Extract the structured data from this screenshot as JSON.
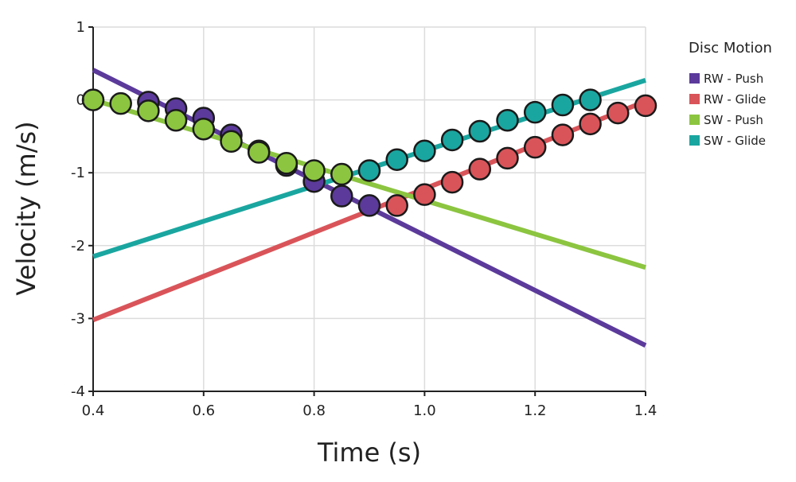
{
  "chart_data": {
    "type": "scatter",
    "xlabel": "Time (s)",
    "ylabel": "Velocity (m/s)",
    "xlim": [
      0.4,
      1.4
    ],
    "ylim": [
      -4,
      1
    ],
    "xticks": [
      0.4,
      0.6,
      0.8,
      1.0,
      1.2,
      1.4
    ],
    "xtick_labels": [
      "0.4",
      "0.6",
      "0.8",
      "1.0",
      "1.2",
      "1.4"
    ],
    "yticks": [
      -4,
      -3,
      -2,
      -1,
      0,
      1
    ],
    "ytick_labels": [
      "-4",
      "-3",
      "-2",
      "-1",
      "0",
      "1"
    ],
    "grid": true,
    "legend": {
      "title": "Disc Motion",
      "placement": "right"
    },
    "series": [
      {
        "name": "RW - Push",
        "color": "#5b3a9b",
        "fit_line": {
          "x": [
            0.4,
            1.4
          ],
          "y": [
            0.41,
            -3.37
          ]
        },
        "points": {
          "x": [
            0.5,
            0.55,
            0.6,
            0.65,
            0.7,
            0.75,
            0.8,
            0.85,
            0.9
          ],
          "y": [
            -0.03,
            -0.12,
            -0.25,
            -0.48,
            -0.7,
            -0.9,
            -1.12,
            -1.32,
            -1.45
          ]
        }
      },
      {
        "name": "RW - Glide",
        "color": "#d95459",
        "fit_line": {
          "x": [
            0.4,
            1.4
          ],
          "y": [
            -3.02,
            -0.02
          ]
        },
        "points": {
          "x": [
            0.95,
            1.0,
            1.05,
            1.1,
            1.15,
            1.2,
            1.25,
            1.3,
            1.35,
            1.4
          ],
          "y": [
            -1.45,
            -1.3,
            -1.13,
            -0.95,
            -0.8,
            -0.65,
            -0.48,
            -0.33,
            -0.18,
            -0.08
          ]
        }
      },
      {
        "name": "SW - Push",
        "color": "#8cc540",
        "fit_line": {
          "x": [
            0.4,
            1.4
          ],
          "y": [
            0.0,
            -2.3
          ]
        },
        "points": {
          "x": [
            0.4,
            0.45,
            0.5,
            0.55,
            0.6,
            0.65,
            0.7,
            0.75,
            0.8,
            0.85
          ],
          "y": [
            0.0,
            -0.05,
            -0.15,
            -0.28,
            -0.4,
            -0.57,
            -0.72,
            -0.87,
            -0.97,
            -1.02
          ]
        }
      },
      {
        "name": "SW - Glide",
        "color": "#1aa6a0",
        "fit_line": {
          "x": [
            0.4,
            1.4
          ],
          "y": [
            -2.15,
            0.27
          ]
        },
        "points": {
          "x": [
            0.9,
            0.95,
            1.0,
            1.05,
            1.1,
            1.15,
            1.2,
            1.25,
            1.3
          ],
          "y": [
            -0.97,
            -0.82,
            -0.7,
            -0.55,
            -0.43,
            -0.28,
            -0.17,
            -0.07,
            0.0
          ]
        }
      }
    ]
  }
}
